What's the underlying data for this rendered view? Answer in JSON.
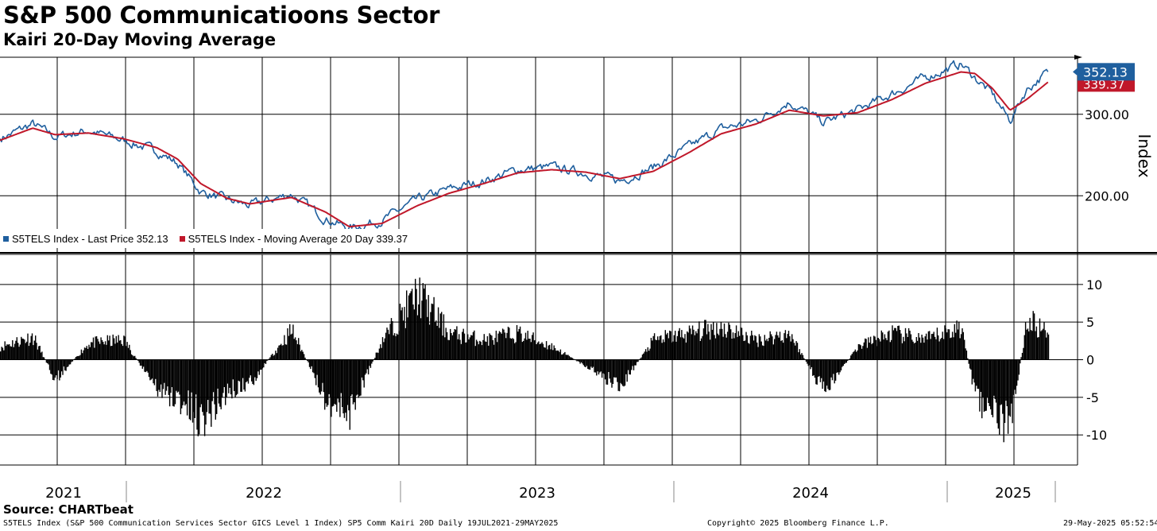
{
  "title": "S&P 500 Communicatioons Sector",
  "subtitle": "Kairi 20-Day Moving Average",
  "source": "Source: CHARTbeat",
  "footer": {
    "description": "S5TELS Index (S&P 500 Communication Services Sector GICS Level 1 Index) SP5 Comm Kairi 20D  Daily 19JUL2021-29MAY2025",
    "copyright": "Copyright© 2025 Bloomberg Finance L.P.",
    "timestamp": "29-May-2025 05:52:54"
  },
  "colors": {
    "price": "#1f5f9e",
    "ma": "#c0182a",
    "kairi": "#000000",
    "grid": "#000000"
  },
  "chart_data": [
    {
      "type": "line",
      "panel": "upper",
      "ylabel": "Index",
      "ylim": [
        130,
        370
      ],
      "yticks": [
        200,
        300
      ],
      "ytick_labels": [
        "200.00",
        "300.00"
      ],
      "x_range": [
        "2021-07-19",
        "2025-05-29"
      ],
      "x_tick_labels": [
        "2021",
        "2022",
        "2023",
        "2024",
        "2025"
      ],
      "legend_position": "bottom-left",
      "grid": true,
      "last_value_labels": {
        "price": "352.13",
        "ma": "339.37"
      },
      "series": [
        {
          "name": "S5TELS Index - Last Price 352.13",
          "role": "price",
          "x": [
            "2021-07-19",
            "2021-09-01",
            "2021-10-01",
            "2021-11-15",
            "2022-01-01",
            "2022-02-15",
            "2022-03-15",
            "2022-04-15",
            "2022-05-20",
            "2022-06-20",
            "2022-08-15",
            "2022-09-30",
            "2022-11-01",
            "2022-12-15",
            "2023-02-01",
            "2023-03-15",
            "2023-05-01",
            "2023-06-15",
            "2023-07-31",
            "2023-09-15",
            "2023-10-31",
            "2023-12-15",
            "2024-02-01",
            "2024-03-15",
            "2024-05-01",
            "2024-06-15",
            "2024-07-31",
            "2024-09-15",
            "2024-10-31",
            "2024-12-15",
            "2025-02-01",
            "2025-02-20",
            "2025-03-15",
            "2025-04-08",
            "2025-04-30",
            "2025-05-29"
          ],
          "y": [
            270,
            288,
            272,
            280,
            268,
            255,
            240,
            205,
            195,
            188,
            202,
            172,
            160,
            170,
            195,
            208,
            218,
            232,
            235,
            228,
            218,
            235,
            260,
            282,
            292,
            315,
            290,
            305,
            325,
            345,
            362,
            345,
            325,
            292,
            330,
            352.13
          ]
        },
        {
          "name": "S5TELS Index - Moving Average 20 Day 339.37",
          "role": "ma",
          "x": [
            "2021-07-19",
            "2021-09-01",
            "2021-10-01",
            "2021-11-15",
            "2022-01-01",
            "2022-02-15",
            "2022-03-15",
            "2022-04-15",
            "2022-05-20",
            "2022-06-20",
            "2022-08-15",
            "2022-09-30",
            "2022-11-01",
            "2022-12-15",
            "2023-02-01",
            "2023-03-15",
            "2023-05-01",
            "2023-06-15",
            "2023-07-31",
            "2023-09-15",
            "2023-10-31",
            "2023-12-15",
            "2024-02-01",
            "2024-03-15",
            "2024-05-01",
            "2024-06-15",
            "2024-07-31",
            "2024-09-15",
            "2024-10-31",
            "2024-12-15",
            "2025-02-01",
            "2025-02-20",
            "2025-03-15",
            "2025-04-08",
            "2025-04-30",
            "2025-05-29"
          ],
          "y": [
            268,
            283,
            275,
            277,
            270,
            259,
            245,
            215,
            197,
            190,
            198,
            180,
            162,
            166,
            188,
            203,
            215,
            228,
            232,
            229,
            221,
            230,
            253,
            276,
            288,
            305,
            298,
            302,
            318,
            338,
            352,
            350,
            332,
            305,
            318,
            339.37
          ]
        }
      ]
    },
    {
      "type": "bar",
      "panel": "lower",
      "name": "SP5 Comm Kairi 20D",
      "ylim": [
        -14,
        14
      ],
      "yticks": [
        -10,
        -5,
        0,
        5,
        10
      ],
      "ytick_labels": [
        "-10",
        "-5",
        "0",
        "5",
        "10"
      ],
      "x_range": [
        "2021-07-19",
        "2025-05-29"
      ],
      "grid": true,
      "x": [
        "2021-07-19",
        "2021-09-01",
        "2021-10-01",
        "2021-11-15",
        "2022-01-01",
        "2022-02-15",
        "2022-03-15",
        "2022-04-15",
        "2022-05-20",
        "2022-06-20",
        "2022-08-15",
        "2022-09-30",
        "2022-11-01",
        "2022-12-15",
        "2023-02-01",
        "2023-03-15",
        "2023-05-01",
        "2023-06-15",
        "2023-07-31",
        "2023-09-15",
        "2023-10-31",
        "2023-12-15",
        "2024-02-01",
        "2024-03-15",
        "2024-05-01",
        "2024-06-15",
        "2024-07-31",
        "2024-09-15",
        "2024-10-31",
        "2024-12-15",
        "2025-02-01",
        "2025-02-20",
        "2025-03-15",
        "2025-04-08",
        "2025-04-30",
        "2025-05-29"
      ],
      "y": [
        2,
        3.5,
        -3,
        2.5,
        3,
        -4.5,
        -6,
        -9,
        -5,
        -3.5,
        4.5,
        -6,
        -8,
        3,
        10,
        4,
        3,
        4,
        2,
        -1,
        -4,
        3,
        4,
        5,
        3,
        4,
        -5,
        2,
        4,
        3,
        5,
        -6,
        -8,
        -10,
        6,
        4
      ]
    }
  ]
}
